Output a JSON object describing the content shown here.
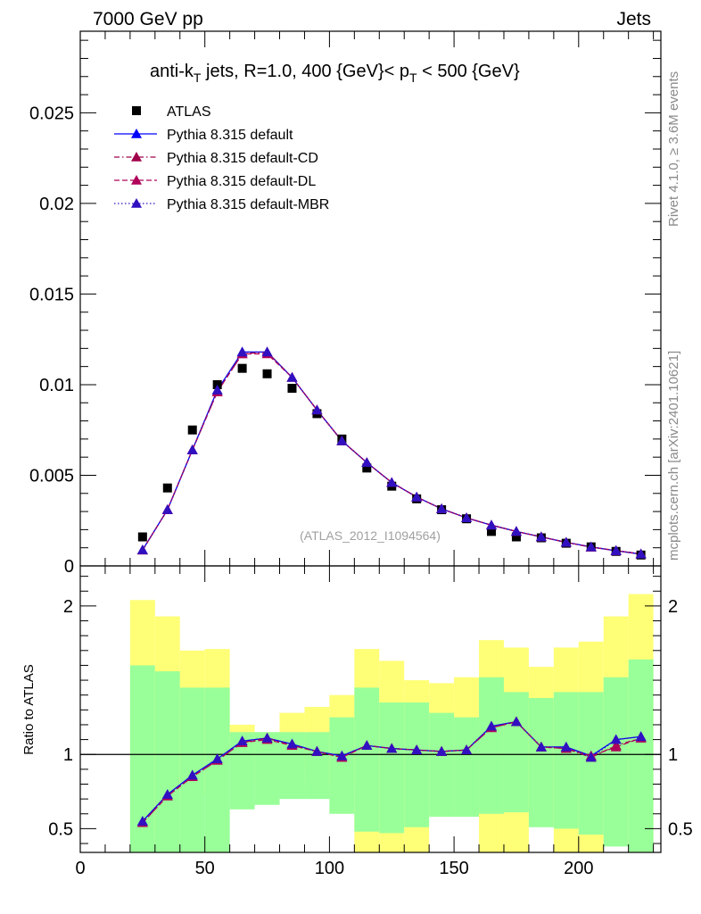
{
  "header": {
    "left": "7000 GeV pp",
    "right": "Jets"
  },
  "side_labels": {
    "rivet": "Rivet 4.1.0, ≥ 3.6M events",
    "mcplots": "mcplots.cern.ch [arXiv:2401.10621]"
  },
  "chart_data": [
    {
      "type": "scatter",
      "title": "anti-k_T jets, R=1.0, 400 {GeV}< p_T < 500 {GeV}",
      "title_parts": {
        "a": "anti-k",
        "a_sub": "T",
        "b": " jets, R=1.0, 400 {GeV}< p",
        "b_sub": "T",
        "c": " < 500 {GeV}"
      },
      "watermark": "(ATLAS_2012_I1094564)",
      "xlim": [
        0,
        233
      ],
      "ylim": [
        0,
        0.0295
      ],
      "ytick_labels": [
        "0",
        "0.005",
        "0.01",
        "0.015",
        "0.02",
        "0.025"
      ],
      "xlabel": "",
      "ylabel": "",
      "x": [
        25,
        35,
        45,
        55,
        65,
        75,
        85,
        95,
        105,
        115,
        125,
        135,
        145,
        155,
        165,
        175,
        185,
        195,
        205,
        215,
        225
      ],
      "series": [
        {
          "name": "ATLAS",
          "style": "data",
          "color": "#000000",
          "values": [
            0.0016,
            0.0043,
            0.0075,
            0.01,
            0.0109,
            0.0106,
            0.0098,
            0.0084,
            0.007,
            0.0054,
            0.0044,
            0.0037,
            0.0031,
            0.0026,
            0.0019,
            0.0016,
            0.00155,
            0.00125,
            0.00105,
            0.0008,
            0.0006
          ]
        },
        {
          "name": "Pythia 8.315 default",
          "style": "solid",
          "color": "#0000ff",
          "values": [
            0.00088,
            0.0031,
            0.0064,
            0.0097,
            0.0118,
            0.0118,
            0.0104,
            0.0086,
            0.0069,
            0.0057,
            0.0046,
            0.0038,
            0.00315,
            0.00265,
            0.00225,
            0.0019,
            0.0016,
            0.0013,
            0.00105,
            0.00083,
            0.00065
          ]
        },
        {
          "name": "Pythia 8.315 default-CD",
          "style": "dashdot",
          "color": "#a0004a",
          "values": [
            0.00087,
            0.0031,
            0.0064,
            0.0096,
            0.0117,
            0.0118,
            0.0104,
            0.0086,
            0.0069,
            0.0057,
            0.0046,
            0.0038,
            0.00315,
            0.00265,
            0.00225,
            0.0019,
            0.0016,
            0.0013,
            0.00103,
            0.00085,
            0.00066
          ]
        },
        {
          "name": "Pythia 8.315 default-DL",
          "style": "dashed",
          "color": "#b0005a",
          "values": [
            0.00087,
            0.0031,
            0.0064,
            0.0096,
            0.0117,
            0.0117,
            0.0104,
            0.0086,
            0.0069,
            0.0057,
            0.0046,
            0.0038,
            0.00315,
            0.00265,
            0.00225,
            0.0019,
            0.0016,
            0.0013,
            0.00104,
            0.00084,
            0.00066
          ]
        },
        {
          "name": "Pythia 8.315 default-MBR",
          "style": "dotted",
          "color": "#3010c0",
          "values": [
            0.00088,
            0.0031,
            0.0064,
            0.0097,
            0.0118,
            0.0118,
            0.0104,
            0.0086,
            0.0069,
            0.0057,
            0.0046,
            0.0038,
            0.00315,
            0.00265,
            0.00225,
            0.0019,
            0.0016,
            0.0013,
            0.00104,
            0.00085,
            0.00066
          ]
        }
      ]
    },
    {
      "type": "line",
      "title": "",
      "ylabel": "Ratio to ATLAS",
      "xlabel": "",
      "xlim": [
        0,
        233
      ],
      "ylim": [
        0.34,
        2.27
      ],
      "xtick_labels": [
        "0",
        "50",
        "100",
        "150",
        "200"
      ],
      "ytick_labels": [
        "0.5",
        "1",
        "2"
      ],
      "bin_edges": [
        20,
        30,
        40,
        50,
        60,
        70,
        80,
        90,
        100,
        110,
        120,
        130,
        140,
        150,
        160,
        170,
        180,
        190,
        200,
        210,
        220,
        230
      ],
      "band_inner": {
        "name": "1 sigma",
        "color": "#99ff99",
        "lo": [
          0.34,
          0.34,
          0.34,
          0.34,
          0.63,
          0.66,
          0.7,
          0.7,
          0.6,
          0.48,
          0.47,
          0.51,
          0.58,
          0.58,
          0.6,
          0.61,
          0.51,
          0.5,
          0.46,
          0.38,
          0.34
        ],
        "hi": [
          1.6,
          1.56,
          1.45,
          1.45,
          1.15,
          1.15,
          1.15,
          1.15,
          1.25,
          1.45,
          1.35,
          1.35,
          1.28,
          1.25,
          1.52,
          1.42,
          1.38,
          1.42,
          1.42,
          1.52,
          1.64
        ]
      },
      "band_outer": {
        "name": "2 sigma",
        "color": "#ffff77",
        "lo": [
          0.46,
          0.34,
          0.73,
          0.73,
          1.0,
          0.83,
          0.89,
          0.8,
          0.78,
          0.34,
          0.34,
          0.34,
          0.68,
          0.62,
          0.34,
          0.34,
          0.52,
          0.34,
          0.34,
          0.58,
          0.38
        ],
        "hi": [
          2.04,
          1.93,
          1.7,
          1.71,
          1.2,
          1.15,
          1.28,
          1.32,
          1.4,
          1.71,
          1.63,
          1.5,
          1.48,
          1.52,
          1.77,
          1.72,
          1.59,
          1.72,
          1.76,
          1.93,
          2.08
        ]
      },
      "reference": 1.0,
      "x": [
        25,
        35,
        45,
        55,
        65,
        75,
        85,
        95,
        105,
        115,
        125,
        135,
        145,
        155,
        165,
        175,
        185,
        195,
        205,
        215,
        225
      ],
      "series": [
        {
          "name": "Pythia 8.315 default",
          "style": "solid",
          "color": "#0000ff",
          "values": [
            0.55,
            0.73,
            0.86,
            0.97,
            1.09,
            1.11,
            1.07,
            1.02,
            0.99,
            1.06,
            1.04,
            1.03,
            1.02,
            1.03,
            1.19,
            1.22,
            1.05,
            1.05,
            0.99,
            1.1,
            1.12
          ]
        },
        {
          "name": "Pythia 8.315 default-CD",
          "style": "dashdot",
          "color": "#a0004a",
          "values": [
            0.54,
            0.72,
            0.85,
            0.96,
            1.08,
            1.11,
            1.06,
            1.02,
            0.98,
            1.06,
            1.04,
            1.03,
            1.02,
            1.03,
            1.18,
            1.22,
            1.05,
            1.04,
            0.98,
            1.06,
            1.11
          ]
        },
        {
          "name": "Pythia 8.315 default-DL",
          "style": "dashed",
          "color": "#b0005a",
          "values": [
            0.54,
            0.72,
            0.85,
            0.96,
            1.08,
            1.1,
            1.06,
            1.02,
            0.98,
            1.06,
            1.04,
            1.03,
            1.02,
            1.03,
            1.18,
            1.22,
            1.05,
            1.04,
            0.99,
            1.05,
            1.11
          ]
        },
        {
          "name": "Pythia 8.315 default-MBR",
          "style": "dotted",
          "color": "#3010c0",
          "values": [
            0.55,
            0.73,
            0.86,
            0.97,
            1.09,
            1.11,
            1.07,
            1.02,
            0.99,
            1.06,
            1.04,
            1.03,
            1.02,
            1.03,
            1.19,
            1.22,
            1.05,
            1.05,
            0.98,
            1.1,
            1.12
          ]
        }
      ]
    }
  ]
}
